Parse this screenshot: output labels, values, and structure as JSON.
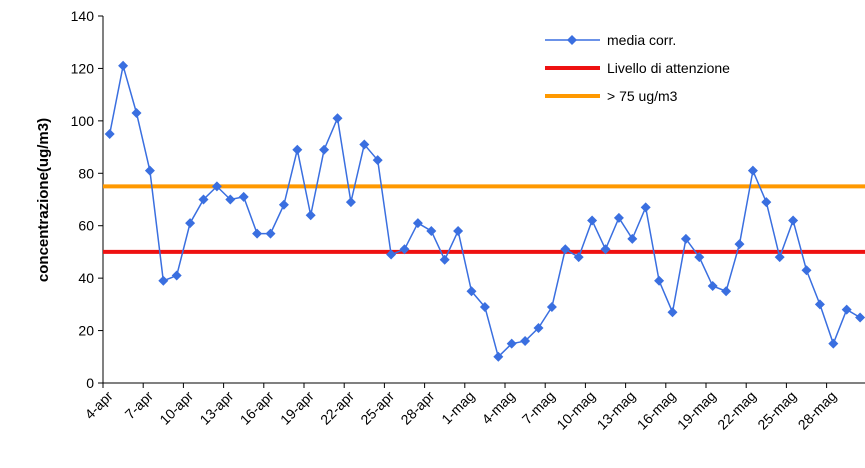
{
  "chart_data": {
    "type": "line",
    "ylabel": "concentrazione(ug/m3)",
    "categories": [
      "4-apr",
      null,
      null,
      "7-apr",
      null,
      null,
      "10-apr",
      null,
      null,
      "13-apr",
      null,
      null,
      "16-apr",
      null,
      null,
      "19-apr",
      null,
      null,
      "22-apr",
      null,
      null,
      "25-apr",
      null,
      null,
      "28-apr",
      null,
      null,
      "1-mag",
      null,
      null,
      "4-mag",
      null,
      null,
      "7-mag",
      null,
      null,
      "10-mag",
      null,
      null,
      "13-mag",
      null,
      null,
      "16-mag",
      null,
      null,
      "19-mag",
      null,
      null,
      "22-mag",
      null,
      null,
      "25-mag",
      null,
      null,
      "28-mag",
      null,
      null
    ],
    "series": [
      {
        "name": "media corr.",
        "color": "#3a6fe0",
        "values": [
          95,
          121,
          103,
          81,
          39,
          41,
          61,
          70,
          75,
          70,
          71,
          57,
          57,
          68,
          89,
          64,
          89,
          101,
          69,
          91,
          85,
          49,
          51,
          61,
          58,
          47,
          58,
          35,
          29,
          10,
          15,
          16,
          21,
          29,
          51,
          48,
          62,
          51,
          63,
          55,
          67,
          39,
          27,
          55,
          48,
          37,
          35,
          53,
          81,
          69,
          48,
          62,
          43,
          30,
          15,
          28,
          25
        ]
      }
    ],
    "reference_lines": [
      {
        "name": "Livello di attenzione",
        "color": "#ee1111",
        "value": 50
      },
      {
        "name": "> 75 ug/m3",
        "color": "#ff9900",
        "value": 75
      }
    ],
    "ylim": [
      0,
      140
    ],
    "yticks": [
      0,
      20,
      40,
      60,
      80,
      100,
      120,
      140
    ]
  }
}
